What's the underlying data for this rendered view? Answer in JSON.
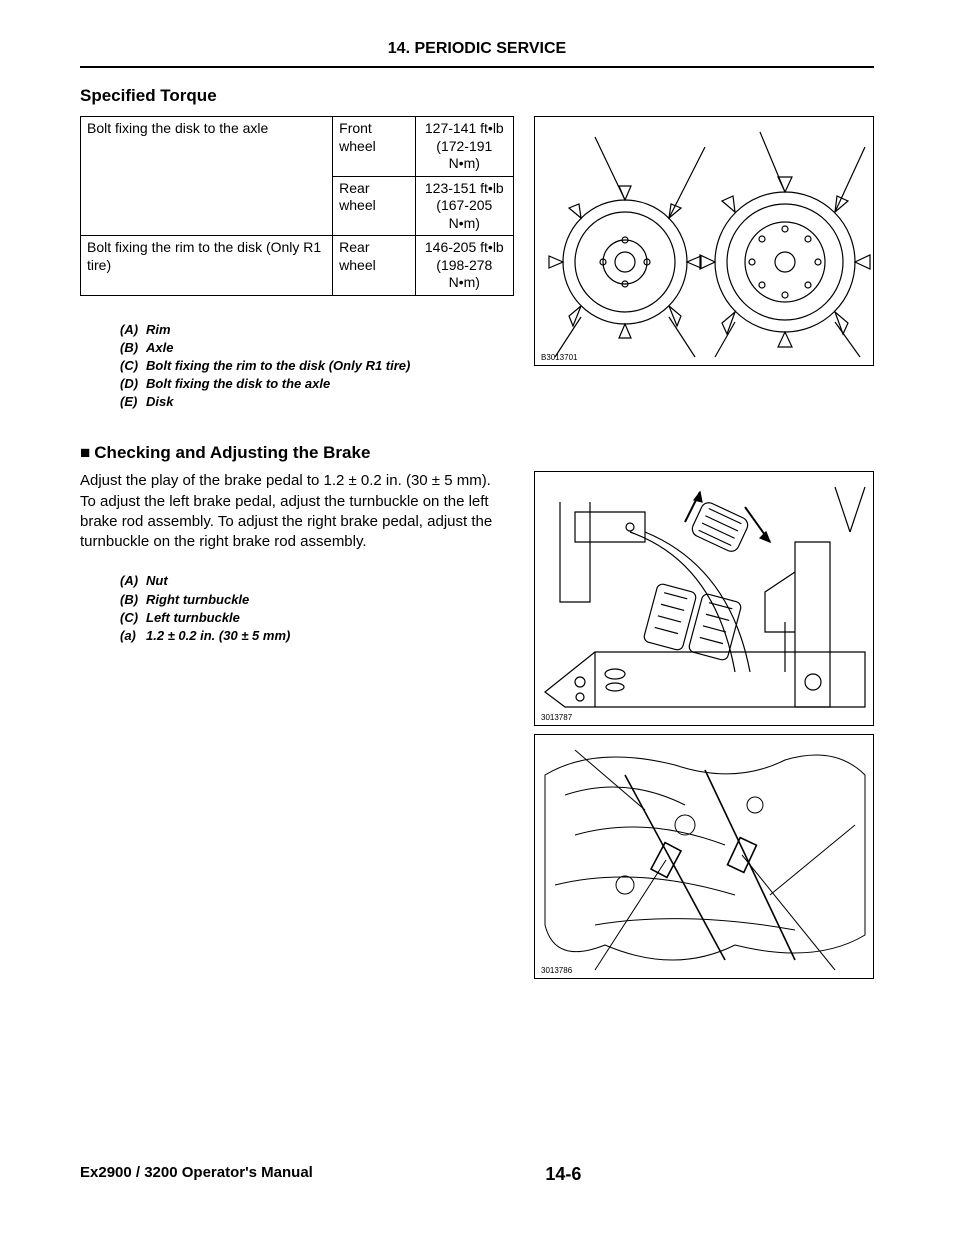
{
  "header": {
    "chapter": "14. PERIODIC SERVICE"
  },
  "torque_section": {
    "title": "Specified Torque",
    "table": {
      "rows": [
        {
          "desc": "Bolt fixing the disk to the axle",
          "wheel": "Front wheel",
          "val": "127-141 ft•lb\n(172-191 N•m)",
          "rowspan_desc": 2
        },
        {
          "desc": "",
          "wheel": "Rear wheel",
          "val": "123-151 ft•lb\n(167-205 N•m)"
        },
        {
          "desc": "Bolt fixing the rim to the disk (Only R1 tire)",
          "wheel": "Rear wheel",
          "val": "146-205 ft•lb\n(198-278 N•m)"
        }
      ]
    },
    "legend": [
      {
        "k": "(A)",
        "v": "Rim"
      },
      {
        "k": "(B)",
        "v": "Axle"
      },
      {
        "k": "(C)",
        "v": "Bolt fixing the rim to the disk (Only R1 tire)"
      },
      {
        "k": "(D)",
        "v": "Bolt fixing the disk to the axle"
      },
      {
        "k": "(E)",
        "v": "Disk"
      }
    ],
    "diagram_caption": "B3013701"
  },
  "brake_section": {
    "title_prefix": "■",
    "title": "Checking and Adjusting the Brake",
    "body": "Adjust the play of the brake pedal to 1.2 ± 0.2 in. (30 ± 5 mm).\nTo adjust the left brake pedal, adjust the turnbuckle on the left brake rod assembly. To adjust the right brake pedal, adjust the turnbuckle on the right brake rod assembly.",
    "legend": [
      {
        "k": "(A)",
        "v": "Nut"
      },
      {
        "k": "(B)",
        "v": "Right turnbuckle"
      },
      {
        "k": "(C)",
        "v": "Left turnbuckle"
      },
      {
        "k": "(a)",
        "v": "1.2 ± 0.2 in. (30 ± 5 mm)"
      }
    ],
    "diagram1_caption": "3013787",
    "diagram2_caption": "3013786"
  },
  "footer": {
    "manual": "Ex2900 / 3200 Operator's Manual",
    "page": "14-6"
  },
  "style": {
    "page_bg": "#ffffff",
    "text_color": "#000000",
    "border_color": "#000000",
    "rule_weight": 2,
    "body_fontsize": 15,
    "title_fontsize": 17,
    "legend_fontsize": 13
  }
}
